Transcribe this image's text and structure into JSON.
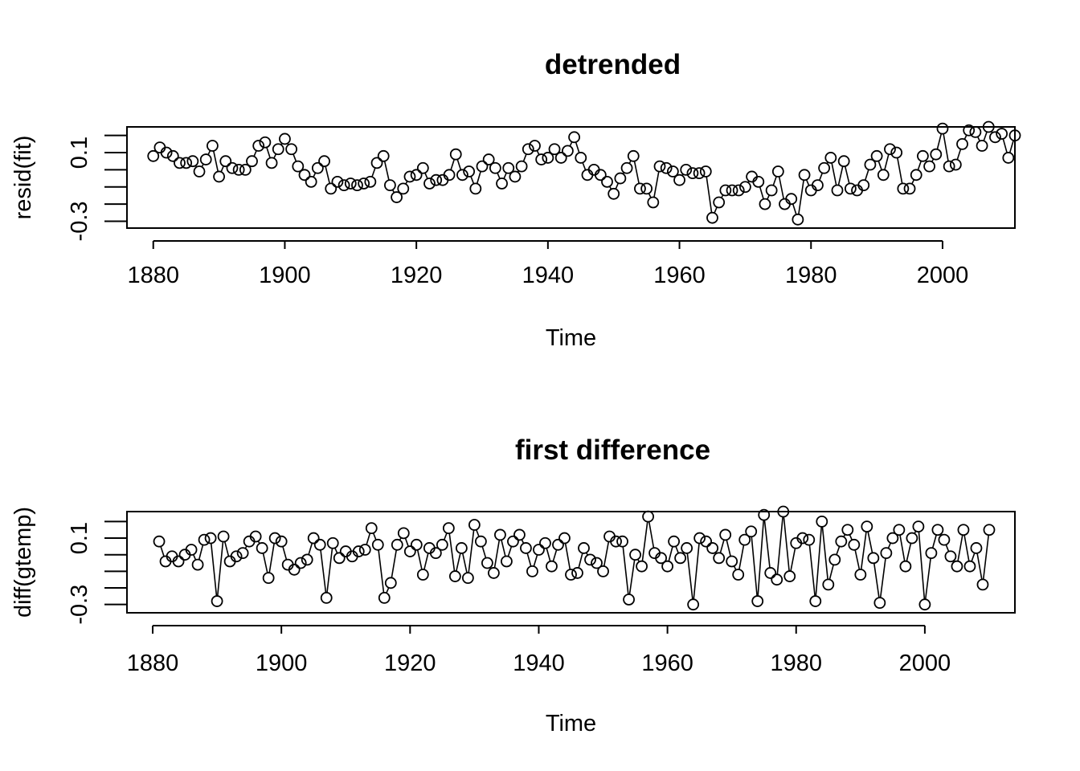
{
  "chart_data": [
    {
      "type": "line",
      "title": "detrended",
      "xlabel": "Time",
      "ylabel": "resid(fit)",
      "xticks": [
        "1880",
        "1900",
        "1920",
        "1940",
        "1960",
        "1980",
        "2000"
      ],
      "yticks": [
        "-0.3",
        "0.1"
      ],
      "xlim": [
        1876,
        2011
      ],
      "ylim": [
        -0.34,
        0.25
      ],
      "markers": "open-circle",
      "x_start": 1880,
      "values": [
        0.08,
        0.13,
        0.1,
        0.08,
        0.04,
        0.04,
        0.05,
        -0.01,
        0.06,
        0.14,
        -0.04,
        0.05,
        0.01,
        0.0,
        0.0,
        0.05,
        0.14,
        0.16,
        0.04,
        0.12,
        0.18,
        0.12,
        0.02,
        -0.03,
        -0.07,
        0.01,
        0.05,
        -0.11,
        -0.07,
        -0.09,
        -0.08,
        -0.09,
        -0.08,
        -0.07,
        0.04,
        0.08,
        -0.09,
        -0.16,
        -0.11,
        -0.04,
        -0.03,
        0.01,
        -0.08,
        -0.06,
        -0.06,
        -0.03,
        0.09,
        -0.03,
        -0.01,
        -0.11,
        0.02,
        0.06,
        0.01,
        -0.08,
        0.01,
        -0.04,
        0.02,
        0.12,
        0.14,
        0.06,
        0.07,
        0.12,
        0.07,
        0.11,
        0.19,
        0.07,
        -0.03,
        0.0,
        -0.03,
        -0.07,
        -0.14,
        -0.05,
        0.01,
        0.08,
        -0.11,
        -0.11,
        -0.19,
        0.02,
        0.01,
        -0.01,
        -0.06,
        0.0,
        -0.02,
        -0.02,
        -0.01,
        -0.28,
        -0.19,
        -0.12,
        -0.12,
        -0.12,
        -0.1,
        -0.04,
        -0.07,
        -0.2,
        -0.12,
        -0.01,
        -0.2,
        -0.17,
        -0.29,
        -0.03,
        -0.12,
        -0.09,
        0.01,
        0.07,
        -0.12,
        0.05,
        -0.11,
        -0.12,
        -0.09,
        0.03,
        0.08,
        -0.03,
        0.12,
        0.1,
        -0.11,
        -0.11,
        -0.03,
        0.08,
        0.02,
        0.09,
        0.24,
        0.02,
        0.03,
        0.15,
        0.23,
        0.22,
        0.14,
        0.25,
        0.19,
        0.21,
        0.07,
        0.2
      ]
    },
    {
      "type": "line",
      "title": "first difference",
      "xlabel": "Time",
      "ylabel": "diff(gtemp)",
      "xticks": [
        "1880",
        "1900",
        "1920",
        "1940",
        "1960",
        "1980",
        "2000"
      ],
      "yticks": [
        "-0.3",
        "0.1"
      ],
      "xlim": [
        1876,
        2014
      ],
      "ylim": [
        -0.35,
        0.26
      ],
      "markers": "open-circle",
      "x_start": 1881,
      "values": [
        0.08,
        -0.04,
        -0.01,
        -0.04,
        0.0,
        0.03,
        -0.06,
        0.09,
        0.1,
        -0.28,
        0.11,
        -0.04,
        -0.01,
        0.01,
        0.08,
        0.11,
        0.04,
        -0.14,
        0.1,
        0.08,
        -0.06,
        -0.09,
        -0.05,
        -0.03,
        0.1,
        0.06,
        -0.26,
        0.07,
        -0.02,
        0.02,
        -0.01,
        0.02,
        0.03,
        0.16,
        0.06,
        -0.26,
        -0.17,
        0.06,
        0.13,
        0.02,
        0.06,
        -0.12,
        0.04,
        0.01,
        0.06,
        0.16,
        -0.13,
        0.04,
        -0.14,
        0.18,
        0.08,
        -0.05,
        -0.11,
        0.12,
        -0.04,
        0.08,
        0.12,
        0.04,
        -0.1,
        0.03,
        0.07,
        -0.07,
        0.06,
        0.1,
        -0.12,
        -0.11,
        0.04,
        -0.03,
        -0.05,
        -0.1,
        0.11,
        0.08,
        0.08,
        -0.27,
        0.0,
        -0.07,
        0.23,
        0.01,
        -0.02,
        -0.07,
        0.08,
        -0.02,
        0.04,
        -0.3,
        0.1,
        0.08,
        0.04,
        -0.02,
        0.12,
        -0.04,
        -0.12,
        0.09,
        0.14,
        -0.28,
        0.24,
        -0.11,
        -0.15,
        0.26,
        -0.13,
        0.07,
        0.1,
        0.09,
        -0.28,
        0.2,
        -0.18,
        -0.03,
        0.08,
        0.15,
        0.06,
        -0.12,
        0.17,
        -0.02,
        -0.29,
        0.01,
        0.1,
        0.15,
        -0.07,
        0.1,
        0.17,
        -0.3,
        0.01,
        0.15,
        0.09,
        -0.01,
        -0.07,
        0.15,
        -0.07,
        0.04,
        -0.18,
        0.15
      ]
    }
  ]
}
